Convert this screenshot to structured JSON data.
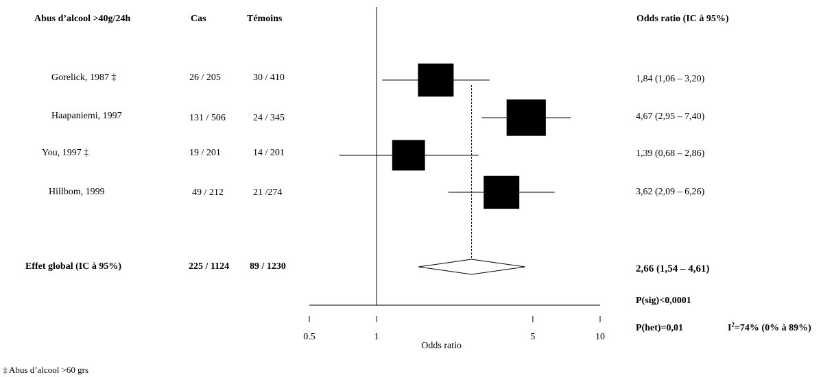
{
  "headers": {
    "study": "Abus d’alcool >40g/24h",
    "cases": "Cas",
    "controls": "Témoins",
    "or_ci": "Odds ratio (IC à 95%)"
  },
  "studies": [
    {
      "label": "Gorelick, 1987 ‡",
      "cases": "26 / 205",
      "controls": "30 / 410",
      "or_text": "1,84 (1,06 – 3,20)"
    },
    {
      "label": "Haapaniemi, 1997",
      "cases": "131 / 506",
      "controls": "24 / 345",
      "or_text": "4,67 (2,95 – 7,40)"
    },
    {
      "label": "You, 1997 ‡",
      "cases": "19 / 201",
      "controls": "14 / 201",
      "or_text": "1,39 (0,68 – 2,86)"
    },
    {
      "label": "Hillbom, 1999",
      "cases": "49 / 212",
      "controls": "21 /274",
      "or_text": "3,62 (2,09 – 6,26)"
    }
  ],
  "overall": {
    "label": "Effet global (IC à 95%)",
    "cases": "225 / 1124",
    "controls": "89 / 1230",
    "or_text": "2,66 (1,54 – 4,61)"
  },
  "stats": {
    "p_sig": "P(sig)<0,0001",
    "p_het": "P(het)=0,01",
    "i2_prefix": "I",
    "i2_sup": "2",
    "i2_rest": "=74% (0% à 89%)"
  },
  "footnote": "‡ Abus d’alcool >60 grs",
  "chart_data": {
    "type": "forest",
    "xlabel": "Odds ratio",
    "xscale": "log",
    "xlim": [
      0.5,
      10
    ],
    "ticks": [
      0.5,
      1,
      5,
      10
    ],
    "tick_labels": [
      "0.5",
      "1",
      "5",
      "10"
    ],
    "reference_line": 1,
    "pooled_line": 2.66,
    "studies": [
      {
        "name": "Gorelick, 1987",
        "or": 1.84,
        "lo": 1.06,
        "hi": 3.2,
        "weight": 1.0
      },
      {
        "name": "Haapaniemi, 1997",
        "or": 4.67,
        "lo": 2.95,
        "hi": 7.4,
        "weight": 1.1
      },
      {
        "name": "You, 1997",
        "or": 1.39,
        "lo": 0.68,
        "hi": 2.86,
        "weight": 0.92
      },
      {
        "name": "Hillbom, 1999",
        "or": 3.62,
        "lo": 2.09,
        "hi": 6.26,
        "weight": 1.0
      }
    ],
    "overall": {
      "or": 2.66,
      "lo": 1.54,
      "hi": 4.61
    }
  }
}
